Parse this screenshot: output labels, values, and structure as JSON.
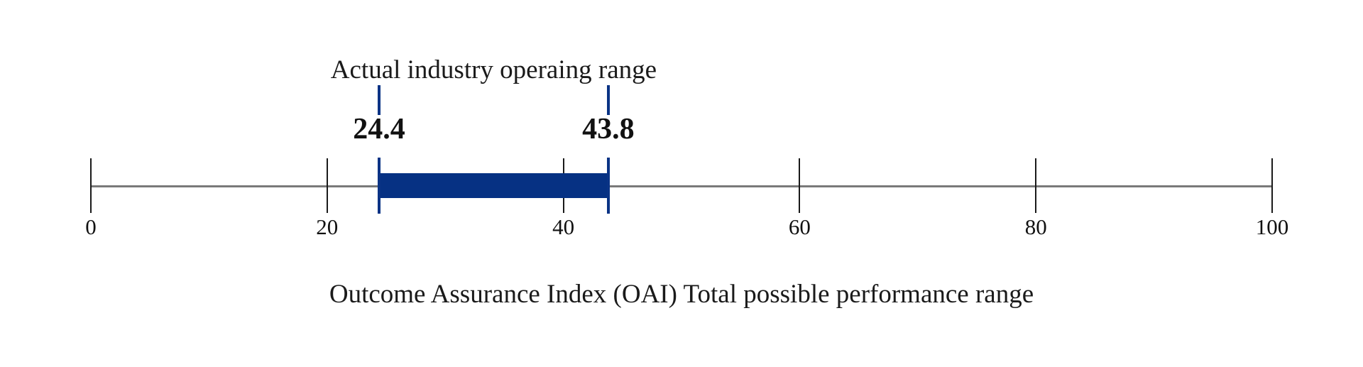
{
  "chart_data": {
    "type": "range-bar",
    "title": "Actual industry operaing range",
    "xlabel": "Outcome Assurance Index (OAI) Total possible performance range",
    "axis": {
      "min": 0,
      "max": 100,
      "ticks": [
        0,
        20,
        40,
        60,
        80,
        100
      ],
      "grid": false
    },
    "range": {
      "low": 24.4,
      "high": 43.8,
      "low_label": "24.4",
      "high_label": "43.8"
    },
    "colors": {
      "bar": "#063183",
      "marker": "#0a3385",
      "axis_line": "#7a7a7a",
      "tick": "#1a1a1a",
      "text": "#111111"
    }
  }
}
